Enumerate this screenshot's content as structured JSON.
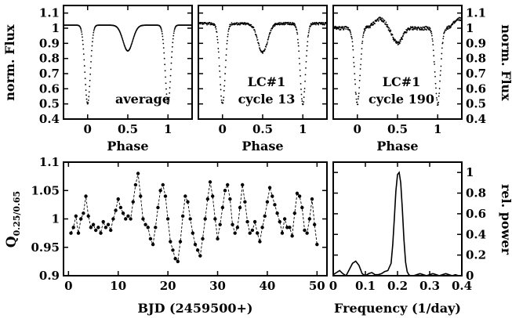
{
  "chart_data": [
    {
      "type": "scatter",
      "id": "avg",
      "annotation": [
        "average"
      ],
      "xlabel": "Phase",
      "ylabel": "norm. Flux",
      "xlim": [
        -0.3,
        1.3
      ],
      "ylim": [
        0.4,
        1.15
      ],
      "xticks": [
        0,
        0.5,
        1
      ],
      "xtick_labels": [
        "0",
        "0.5",
        "1"
      ],
      "yticks": [
        0.4,
        0.5,
        0.6,
        0.7,
        0.8,
        0.9,
        1.0,
        1.1
      ],
      "ytick_labels": [
        "0.4",
        "0.5",
        "0.6",
        "0.7",
        "0.8",
        "0.9",
        "1",
        "1.1"
      ],
      "curve_model": {
        "baseline": 1.02,
        "primary_depth": 0.52,
        "secondary_depth": 0.17,
        "noise": 0.0
      }
    },
    {
      "type": "scatter",
      "id": "cyc13",
      "annotation": [
        "LC#1",
        "cycle 13"
      ],
      "xlabel": "Phase",
      "xlim": [
        -0.3,
        1.3
      ],
      "ylim": [
        0.4,
        1.15
      ],
      "xticks": [
        0,
        0.5,
        1
      ],
      "xtick_labels": [
        "0",
        "0.5",
        "1"
      ],
      "curve_model": {
        "baseline": 1.03,
        "primary_depth": 0.53,
        "secondary_depth": 0.19,
        "noise": 0.008
      }
    },
    {
      "type": "scatter",
      "id": "cyc190",
      "annotation": [
        "LC#1",
        "cycle 190"
      ],
      "xlabel": "Phase",
      "ylabel": "norm. Flux",
      "xlim": [
        -0.3,
        1.3
      ],
      "ylim": [
        0.4,
        1.15
      ],
      "xticks": [
        0,
        0.5,
        1
      ],
      "xtick_labels": [
        "0",
        "0.5",
        "1"
      ],
      "yticks": [
        0.4,
        0.5,
        0.6,
        0.7,
        0.8,
        0.9,
        1.0,
        1.1
      ],
      "ytick_labels": [
        "0.4",
        "0.5",
        "0.6",
        "0.7",
        "0.8",
        "0.9",
        "1",
        "1.1"
      ],
      "curve_model": {
        "baseline": 1.0,
        "primary_depth": 0.5,
        "secondary_depth": 0.1,
        "noise": 0.012
      },
      "bump": {
        "center": 0.28,
        "height": 0.06
      }
    },
    {
      "type": "line",
      "id": "qseries",
      "xlabel": "BJD (2459500+)",
      "ylabel_main": "Q",
      "ylabel_sub": "0.25/0.65",
      "xlim": [
        -1,
        52
      ],
      "ylim": [
        0.9,
        1.1
      ],
      "xticks": [
        0,
        10,
        20,
        30,
        40,
        50
      ],
      "xtick_labels": [
        "0",
        "10",
        "20",
        "30",
        "40",
        "50"
      ],
      "yticks": [
        0.9,
        0.95,
        1.0,
        1.05,
        1.1
      ],
      "ytick_labels": [
        "0.9",
        "0.95",
        "1",
        "1.05",
        "1.1"
      ],
      "x": [
        0.5,
        1.0,
        1.5,
        2.0,
        2.5,
        3.0,
        3.5,
        4.0,
        4.5,
        5.0,
        5.5,
        6.0,
        6.5,
        7.0,
        7.5,
        8.0,
        8.5,
        9.0,
        9.5,
        10.0,
        10.5,
        11.0,
        11.5,
        12.0,
        12.5,
        13.0,
        13.5,
        14.0,
        14.5,
        15.0,
        15.5,
        16.0,
        16.5,
        17.0,
        17.5,
        18.0,
        18.5,
        19.0,
        19.5,
        20.0,
        20.5,
        21.0,
        21.5,
        22.0,
        22.5,
        23.0,
        23.5,
        24.0,
        24.5,
        25.0,
        25.5,
        26.0,
        26.5,
        27.0,
        27.5,
        28.0,
        28.5,
        29.0,
        29.5,
        30.0,
        30.5,
        31.0,
        31.5,
        32.0,
        32.5,
        33.0,
        33.5,
        34.0,
        34.5,
        35.0,
        35.5,
        36.0,
        36.5,
        37.0,
        37.5,
        38.0,
        38.5,
        39.0,
        39.5,
        40.0,
        40.5,
        41.0,
        41.5,
        42.0,
        42.5,
        43.0,
        43.5,
        44.0,
        44.5,
        45.0,
        45.5,
        46.0,
        46.5,
        47.0,
        47.5,
        48.0,
        48.5,
        49.0,
        49.5,
        50.0
      ],
      "values": [
        0.975,
        0.985,
        1.005,
        0.975,
        1.0,
        1.01,
        1.04,
        1.005,
        0.985,
        0.99,
        0.98,
        0.985,
        0.975,
        0.995,
        0.985,
        0.99,
        0.98,
        1.0,
        1.015,
        1.035,
        1.02,
        1.01,
        1.0,
        1.005,
        1.0,
        1.03,
        1.06,
        1.08,
        1.04,
        1.0,
        0.99,
        0.985,
        0.965,
        0.955,
        0.985,
        1.02,
        1.05,
        1.06,
        1.04,
        1.0,
        0.96,
        0.945,
        0.93,
        0.925,
        0.96,
        1.005,
        1.04,
        1.03,
        1.0,
        0.975,
        0.955,
        0.945,
        0.935,
        0.965,
        1.0,
        1.035,
        1.065,
        1.04,
        1.0,
        0.965,
        0.99,
        1.02,
        1.05,
        1.06,
        1.035,
        0.99,
        0.975,
        0.985,
        1.02,
        1.06,
        1.03,
        0.995,
        0.975,
        0.98,
        0.995,
        0.975,
        0.96,
        0.985,
        1.005,
        1.03,
        1.055,
        1.04,
        1.025,
        1.01,
        0.995,
        0.975,
        1.0,
        0.985,
        0.985,
        0.97,
        1.01,
        1.045,
        1.04,
        1.02,
        0.98,
        0.975,
        1.0,
        1.035,
        0.99,
        0.955
      ]
    },
    {
      "type": "line",
      "id": "power",
      "xlabel": "Frequency (1/day)",
      "ylabel": "rel. power",
      "xlim": [
        0,
        0.4
      ],
      "ylim": [
        0,
        1.1
      ],
      "xticks": [
        0,
        0.1,
        0.2,
        0.3,
        0.4
      ],
      "xtick_labels": [
        "0",
        "0.1",
        "0.2",
        "0.3",
        "0.4"
      ],
      "yticks": [
        0,
        0.2,
        0.4,
        0.6,
        0.8,
        1.0
      ],
      "ytick_labels": [
        "0",
        "0.2",
        "0.4",
        "0.6",
        "0.8",
        "1"
      ],
      "x": [
        0.0,
        0.01,
        0.02,
        0.03,
        0.04,
        0.05,
        0.06,
        0.07,
        0.08,
        0.09,
        0.1,
        0.11,
        0.12,
        0.13,
        0.14,
        0.15,
        0.16,
        0.17,
        0.18,
        0.185,
        0.19,
        0.195,
        0.2,
        0.205,
        0.21,
        0.215,
        0.22,
        0.225,
        0.23,
        0.235,
        0.24,
        0.25,
        0.26,
        0.27,
        0.28,
        0.29,
        0.3,
        0.31,
        0.32,
        0.33,
        0.34,
        0.35,
        0.36,
        0.37,
        0.38,
        0.39,
        0.4
      ],
      "values": [
        0.01,
        0.03,
        0.05,
        0.02,
        0.0,
        0.06,
        0.12,
        0.14,
        0.1,
        0.02,
        0.0,
        0.02,
        0.03,
        0.01,
        0.01,
        0.02,
        0.04,
        0.05,
        0.12,
        0.3,
        0.55,
        0.82,
        0.98,
        1.0,
        0.9,
        0.65,
        0.35,
        0.13,
        0.04,
        0.01,
        0.0,
        0.0,
        0.01,
        0.02,
        0.01,
        0.0,
        0.01,
        0.02,
        0.01,
        0.0,
        0.01,
        0.02,
        0.01,
        0.0,
        0.01,
        0.0,
        0.0
      ]
    }
  ]
}
